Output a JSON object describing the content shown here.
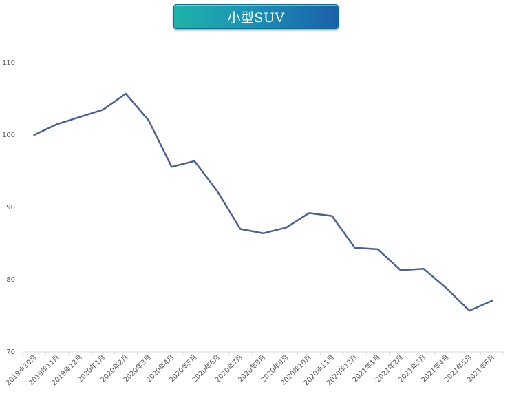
{
  "chart_data": {
    "type": "line",
    "title": "小型SUV",
    "categories": [
      "2019年10月",
      "2019年11月",
      "2019年12月",
      "2020年1月",
      "2020年2月",
      "2020年3月",
      "2020年4月",
      "2020年5月",
      "2020年6月",
      "2020年7月",
      "2020年8月",
      "2020年9月",
      "2020年10月",
      "2020年11月",
      "2020年12月",
      "2021年1月",
      "2021年2月",
      "2021年3月",
      "2021年4月",
      "2021年5月",
      "2021年6月"
    ],
    "series": [
      {
        "values": [
          100.0,
          101.5,
          102.5,
          103.5,
          105.7,
          102.0,
          95.6,
          96.4,
          92.2,
          87.0,
          86.4,
          87.2,
          89.2,
          88.8,
          84.4,
          84.2,
          81.3,
          81.5,
          78.8,
          75.7,
          77.1
        ],
        "color": "#4a5f99"
      }
    ],
    "ylim": [
      70,
      110
    ],
    "yticks": [
      70,
      80,
      90,
      100,
      110
    ],
    "xlabel": "",
    "ylabel": "",
    "grid": false,
    "legend": "none"
  }
}
